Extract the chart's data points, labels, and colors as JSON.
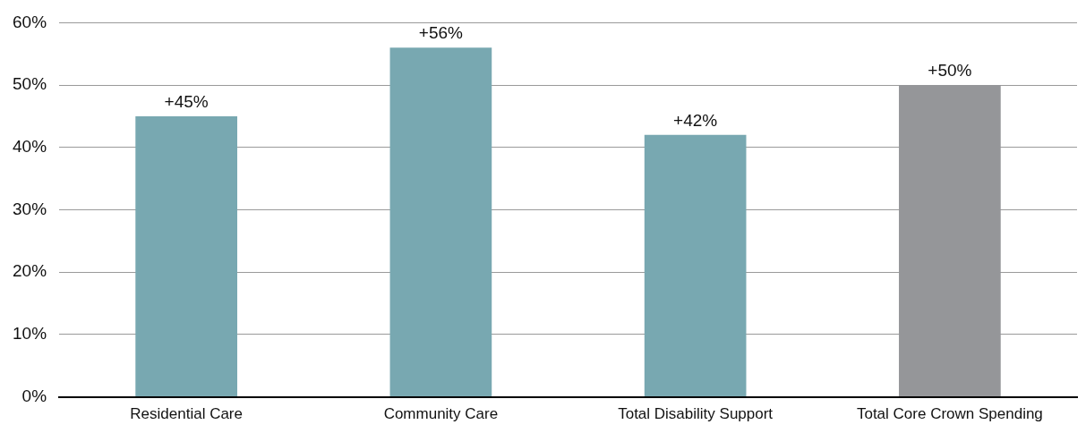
{
  "chart_data": {
    "type": "bar",
    "categories": [
      "Residential Care",
      "Community Care",
      "Total Disability Support",
      "Total Core Crown Spending"
    ],
    "values": [
      45,
      56,
      42,
      50
    ],
    "colors": [
      "#78a8b1",
      "#78a8b1",
      "#78a8b1",
      "#959699"
    ],
    "value_labels": [
      "+45%",
      "+56%",
      "+42%",
      "+50%"
    ],
    "ylim": [
      0,
      60
    ],
    "yticks": [
      {
        "value": 0,
        "label": "0%"
      },
      {
        "value": 10,
        "label": "10%"
      },
      {
        "value": 20,
        "label": "20%"
      },
      {
        "value": 30,
        "label": "30%"
      },
      {
        "value": 40,
        "label": "40%"
      },
      {
        "value": 50,
        "label": "50%"
      },
      {
        "value": 60,
        "label": "60%"
      }
    ],
    "grid": "y",
    "legend": false
  }
}
